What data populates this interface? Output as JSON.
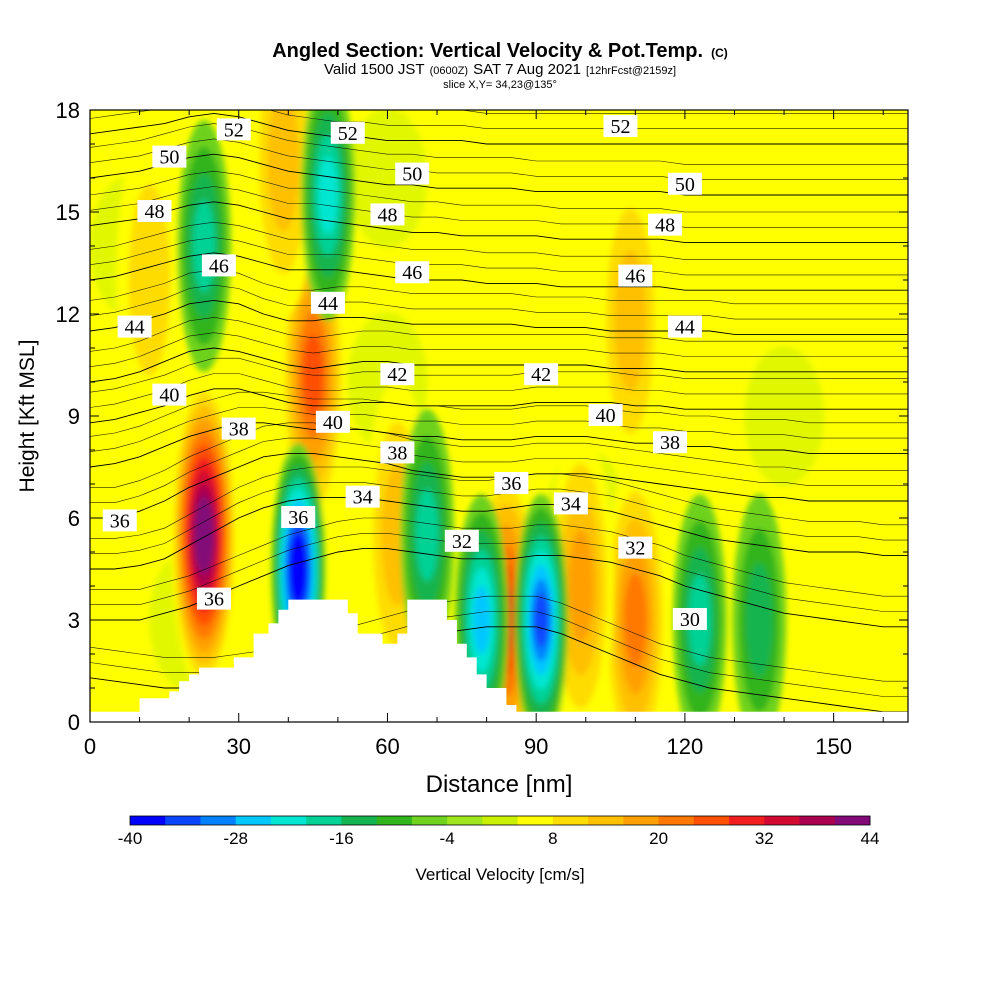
{
  "header": {
    "title": "Angled Section: Vertical Velocity & Pot.Temp.",
    "title_tag": "(C)",
    "valid_prefix": "Valid 1500 JST",
    "valid_z": "(0600Z)",
    "valid_date": "SAT 7 Aug 2021",
    "fcst": "[12hrFcst@2159z]",
    "slice": "slice X,Y= 34,23@135°"
  },
  "chart_data": {
    "type": "heatmap",
    "title": "Angled Section: Vertical Velocity & Pot.Temp.",
    "xlabel": "Distance [nm]",
    "ylabel": "Height [Kft MSL]",
    "xlim": [
      0,
      165
    ],
    "ylim": [
      0,
      18
    ],
    "x_ticks": [
      0,
      30,
      60,
      90,
      120,
      150
    ],
    "y_ticks": [
      0,
      3,
      6,
      9,
      12,
      15,
      18
    ],
    "grid": false,
    "colorbar": {
      "label": "Vertical Velocity [cm/s]",
      "min": -40,
      "max": 44,
      "step": 4,
      "tick_labels": [
        "-40",
        "-28",
        "-16",
        "-4",
        "8",
        "20",
        "32",
        "44"
      ],
      "colors": [
        "#0000ff",
        "#0a46ff",
        "#0082ff",
        "#00c8ff",
        "#00e6d2",
        "#00d296",
        "#14b450",
        "#32b41e",
        "#6ed21e",
        "#a0e61e",
        "#c8f000",
        "#ffff00",
        "#ffdc00",
        "#ffc000",
        "#ffa000",
        "#ff7800",
        "#ff5000",
        "#f01e1e",
        "#d20a32",
        "#aa0050",
        "#820a78"
      ]
    },
    "terrain": [
      [
        0,
        0.3
      ],
      [
        10,
        0.3
      ],
      [
        10,
        0.7
      ],
      [
        16,
        0.7
      ],
      [
        16,
        0.9
      ],
      [
        18,
        0.9
      ],
      [
        18,
        1.2
      ],
      [
        20,
        1.2
      ],
      [
        20,
        1.4
      ],
      [
        22,
        1.4
      ],
      [
        22,
        1.6
      ],
      [
        29,
        1.6
      ],
      [
        29,
        1.9
      ],
      [
        33,
        1.9
      ],
      [
        33,
        2.6
      ],
      [
        36,
        2.6
      ],
      [
        36,
        2.9
      ],
      [
        38,
        2.9
      ],
      [
        38,
        3.3
      ],
      [
        40,
        3.3
      ],
      [
        40,
        3.6
      ],
      [
        52,
        3.6
      ],
      [
        52,
        3.2
      ],
      [
        54,
        3.2
      ],
      [
        54,
        2.6
      ],
      [
        59,
        2.6
      ],
      [
        59,
        2.3
      ],
      [
        62,
        2.3
      ],
      [
        62,
        2.6
      ],
      [
        64,
        2.6
      ],
      [
        64,
        3.6
      ],
      [
        72,
        3.6
      ],
      [
        72,
        3.0
      ],
      [
        74,
        3.0
      ],
      [
        74,
        2.3
      ],
      [
        76,
        2.3
      ],
      [
        76,
        1.9
      ],
      [
        78,
        1.9
      ],
      [
        78,
        1.4
      ],
      [
        80,
        1.4
      ],
      [
        80,
        1.0
      ],
      [
        84,
        1.0
      ],
      [
        84,
        0.5
      ],
      [
        86,
        0.5
      ],
      [
        86,
        0.3
      ],
      [
        165,
        0.3
      ]
    ],
    "updrafts": [
      {
        "x": 23,
        "y": 5.5,
        "value": 44
      },
      {
        "x": 45,
        "y": 10.2,
        "value": 24
      },
      {
        "x": 84,
        "y": 3.0,
        "value": 28
      },
      {
        "x": 110,
        "y": 3.0,
        "value": 18
      },
      {
        "x": 62,
        "y": 5.5,
        "value": 12
      },
      {
        "x": 99,
        "y": 4.0,
        "value": 14
      },
      {
        "x": 39,
        "y": 16.5,
        "value": 10
      },
      {
        "x": 109,
        "y": 11.8,
        "value": 10
      },
      {
        "x": 12,
        "y": 13.0,
        "value": 8
      }
    ],
    "downdrafts": [
      {
        "x": 42,
        "y": 4.5,
        "value": -40
      },
      {
        "x": 91,
        "y": 3.0,
        "value": -30
      },
      {
        "x": 79,
        "y": 3.0,
        "value": -24
      },
      {
        "x": 48,
        "y": 15.5,
        "value": -20
      },
      {
        "x": 23,
        "y": 14.0,
        "value": -16
      },
      {
        "x": 68,
        "y": 5.5,
        "value": -14
      },
      {
        "x": 123,
        "y": 3.0,
        "value": -14
      },
      {
        "x": 135,
        "y": 3.0,
        "value": -12
      }
    ],
    "isentropes": [
      {
        "label": "30",
        "heights": [
          1.3,
          1.2,
          1.1,
          1.0,
          1.0,
          1.0,
          1.1,
          1.2,
          1.4,
          1.6,
          1.8,
          2.0,
          2.2,
          2.4,
          2.6,
          2.7,
          2.8,
          2.8,
          2.8,
          2.6,
          2.3,
          2.0,
          1.7,
          1.4,
          1.2,
          1.0,
          0.9,
          0.8,
          0.7,
          0.6,
          0.5,
          0.4,
          0.3,
          0.3
        ]
      },
      {
        "label": "32",
        "heights": [
          3.0,
          3.0,
          3.0,
          3.2,
          3.4,
          3.7,
          4.0,
          4.3,
          4.6,
          4.8,
          5.0,
          5.1,
          5.1,
          5.0,
          4.9,
          4.8,
          4.8,
          4.8,
          4.9,
          4.9,
          4.8,
          4.7,
          4.5,
          4.3,
          4.0,
          3.8,
          3.6,
          3.4,
          3.2,
          3.1,
          3.0,
          2.9,
          2.8,
          2.8
        ]
      },
      {
        "label": "34",
        "heights": [
          4.5,
          4.5,
          4.6,
          4.8,
          5.2,
          5.6,
          6.0,
          6.3,
          6.5,
          6.6,
          6.6,
          6.6,
          6.5,
          6.4,
          6.3,
          6.2,
          6.2,
          6.3,
          6.4,
          6.4,
          6.3,
          6.2,
          6.0,
          5.8,
          5.6,
          5.4,
          5.3,
          5.2,
          5.1,
          5.0,
          5.0,
          5.0,
          4.9,
          4.9
        ]
      },
      {
        "label": "36",
        "heights": [
          6.0,
          6.0,
          6.2,
          6.5,
          6.9,
          7.2,
          7.5,
          7.8,
          7.9,
          7.9,
          7.8,
          7.7,
          7.6,
          7.4,
          7.3,
          7.2,
          7.2,
          7.2,
          7.3,
          7.3,
          7.3,
          7.2,
          7.1,
          7.0,
          6.9,
          6.8,
          6.7,
          6.6,
          6.6,
          6.5,
          6.5,
          6.5,
          6.5,
          6.5
        ]
      },
      {
        "label": "38",
        "heights": [
          7.5,
          7.6,
          7.8,
          8.1,
          8.4,
          8.6,
          8.8,
          8.8,
          8.7,
          8.6,
          8.6,
          8.6,
          8.5,
          8.4,
          8.4,
          8.3,
          8.3,
          8.3,
          8.4,
          8.4,
          8.4,
          8.3,
          8.2,
          8.2,
          8.1,
          8.1,
          8.0,
          8.0,
          8.0,
          7.9,
          7.9,
          7.9,
          7.9,
          7.9
        ]
      },
      {
        "label": "40",
        "heights": [
          8.8,
          8.9,
          9.1,
          9.3,
          9.6,
          9.8,
          9.8,
          9.6,
          9.4,
          9.3,
          9.3,
          9.4,
          9.4,
          9.3,
          9.3,
          9.3,
          9.3,
          9.3,
          9.4,
          9.4,
          9.4,
          9.4,
          9.3,
          9.3,
          9.2,
          9.2,
          9.2,
          9.2,
          9.2,
          9.2,
          9.2,
          9.2,
          9.2,
          9.2
        ]
      },
      {
        "label": "42",
        "heights": [
          10.0,
          10.1,
          10.3,
          10.6,
          10.9,
          11.0,
          10.9,
          10.7,
          10.5,
          10.4,
          10.5,
          10.6,
          10.6,
          10.5,
          10.5,
          10.5,
          10.5,
          10.5,
          10.5,
          10.5,
          10.5,
          10.4,
          10.4,
          10.4,
          10.3,
          10.3,
          10.3,
          10.3,
          10.3,
          10.3,
          10.3,
          10.3,
          10.3,
          10.3
        ]
      },
      {
        "label": "44",
        "heights": [
          11.5,
          11.6,
          11.8,
          12.0,
          12.3,
          12.4,
          12.3,
          12.0,
          11.8,
          11.8,
          11.9,
          11.9,
          11.8,
          11.7,
          11.7,
          11.7,
          11.7,
          11.7,
          11.6,
          11.6,
          11.6,
          11.5,
          11.5,
          11.5,
          11.5,
          11.5,
          11.4,
          11.4,
          11.4,
          11.4,
          11.4,
          11.4,
          11.4,
          11.4
        ]
      },
      {
        "label": "46",
        "heights": [
          13.0,
          13.1,
          13.3,
          13.5,
          13.7,
          13.8,
          13.7,
          13.5,
          13.3,
          13.3,
          13.3,
          13.2,
          13.1,
          13.0,
          13.0,
          13.0,
          12.9,
          12.9,
          12.9,
          12.8,
          12.8,
          12.8,
          12.8,
          12.8,
          12.7,
          12.7,
          12.7,
          12.7,
          12.7,
          12.7,
          12.7,
          12.7,
          12.7,
          12.7
        ]
      },
      {
        "label": "48",
        "heights": [
          14.6,
          14.7,
          14.8,
          15.0,
          15.2,
          15.3,
          15.2,
          15.0,
          14.8,
          14.8,
          14.7,
          14.6,
          14.5,
          14.4,
          14.4,
          14.3,
          14.3,
          14.3,
          14.3,
          14.2,
          14.2,
          14.2,
          14.2,
          14.2,
          14.1,
          14.1,
          14.1,
          14.1,
          14.1,
          14.1,
          14.1,
          14.1,
          14.1,
          14.1
        ]
      },
      {
        "label": "50",
        "heights": [
          16.0,
          16.1,
          16.2,
          16.4,
          16.6,
          16.7,
          16.6,
          16.4,
          16.2,
          16.1,
          16.0,
          15.9,
          15.8,
          15.8,
          15.7,
          15.7,
          15.7,
          15.7,
          15.6,
          15.6,
          15.6,
          15.6,
          15.6,
          15.6,
          15.5,
          15.5,
          15.5,
          15.5,
          15.5,
          15.5,
          15.5,
          15.5,
          15.5,
          15.5
        ]
      },
      {
        "label": "52",
        "heights": [
          17.3,
          17.4,
          17.5,
          17.6,
          17.8,
          17.9,
          17.8,
          17.6,
          17.4,
          17.3,
          17.2,
          17.2,
          17.1,
          17.1,
          17.1,
          17.1,
          17.0,
          17.0,
          17.0,
          17.0,
          17.0,
          17.0,
          17.0,
          17.0,
          17.0,
          17.0,
          17.0,
          17.0,
          17.0,
          17.0,
          17.0,
          17.0,
          17.0,
          17.0
        ]
      }
    ],
    "contour_labels": [
      {
        "text": "52",
        "x": 29,
        "y": 17.4
      },
      {
        "text": "52",
        "x": 52,
        "y": 17.3
      },
      {
        "text": "52",
        "x": 107,
        "y": 17.5
      },
      {
        "text": "50",
        "x": 16,
        "y": 16.6
      },
      {
        "text": "50",
        "x": 65,
        "y": 16.1
      },
      {
        "text": "50",
        "x": 120,
        "y": 15.8
      },
      {
        "text": "48",
        "x": 13,
        "y": 15.0
      },
      {
        "text": "48",
        "x": 60,
        "y": 14.9
      },
      {
        "text": "48",
        "x": 116,
        "y": 14.6
      },
      {
        "text": "46",
        "x": 26,
        "y": 13.4
      },
      {
        "text": "46",
        "x": 65,
        "y": 13.2
      },
      {
        "text": "46",
        "x": 110,
        "y": 13.1
      },
      {
        "text": "44",
        "x": 9,
        "y": 11.6
      },
      {
        "text": "44",
        "x": 48,
        "y": 12.3
      },
      {
        "text": "44",
        "x": 120,
        "y": 11.6
      },
      {
        "text": "42",
        "x": 62,
        "y": 10.2
      },
      {
        "text": "42",
        "x": 91,
        "y": 10.2
      },
      {
        "text": "40",
        "x": 16,
        "y": 9.6
      },
      {
        "text": "40",
        "x": 49,
        "y": 8.8
      },
      {
        "text": "40",
        "x": 104,
        "y": 9.0
      },
      {
        "text": "38",
        "x": 30,
        "y": 8.6
      },
      {
        "text": "38",
        "x": 62,
        "y": 7.9
      },
      {
        "text": "38",
        "x": 117,
        "y": 8.2
      },
      {
        "text": "36",
        "x": 6,
        "y": 5.9
      },
      {
        "text": "36",
        "x": 42,
        "y": 6.0
      },
      {
        "text": "36",
        "x": 85,
        "y": 7.0
      },
      {
        "text": "36",
        "x": 25,
        "y": 3.6
      },
      {
        "text": "34",
        "x": 55,
        "y": 6.6
      },
      {
        "text": "34",
        "x": 97,
        "y": 6.4
      },
      {
        "text": "32",
        "x": 75,
        "y": 5.3
      },
      {
        "text": "32",
        "x": 110,
        "y": 5.1
      },
      {
        "text": "30",
        "x": 121,
        "y": 3.0
      }
    ]
  }
}
